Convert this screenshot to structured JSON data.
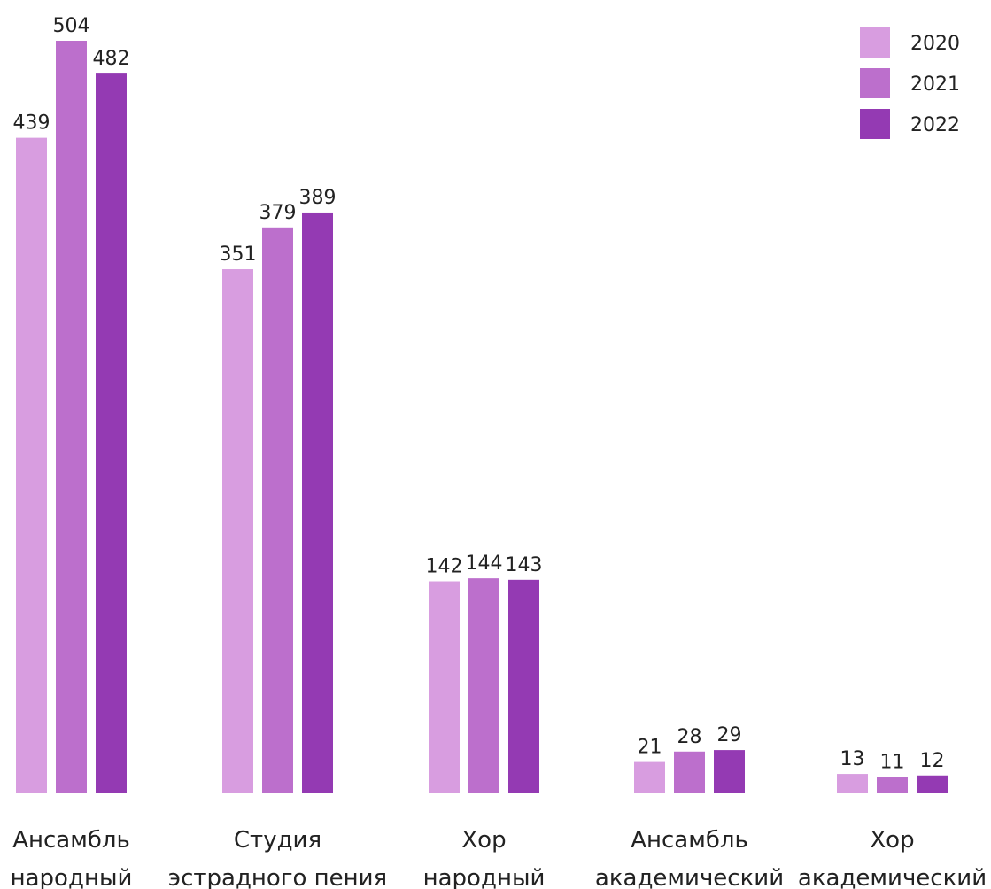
{
  "chart_data": {
    "type": "bar",
    "categories": [
      [
        "Ансамбль",
        "народный"
      ],
      [
        "Студия",
        "эстрадного пения"
      ],
      [
        "Хор",
        "народный"
      ],
      [
        "Ансамбль",
        "академический"
      ],
      [
        "Хор",
        "академический"
      ]
    ],
    "series": [
      {
        "name": "2020",
        "color": "#d89de0",
        "values": [
          439,
          351,
          142,
          21,
          13
        ]
      },
      {
        "name": "2021",
        "color": "#bc6fcc",
        "values": [
          504,
          379,
          144,
          28,
          11
        ]
      },
      {
        "name": "2022",
        "color": "#943ab3",
        "values": [
          482,
          389,
          143,
          29,
          12
        ]
      }
    ],
    "title": "",
    "xlabel": "",
    "ylabel": "",
    "ylim": [
      0,
      504
    ],
    "grid": false,
    "y_axis_visible": false,
    "data_labels": true,
    "legend_position": "top-right"
  }
}
